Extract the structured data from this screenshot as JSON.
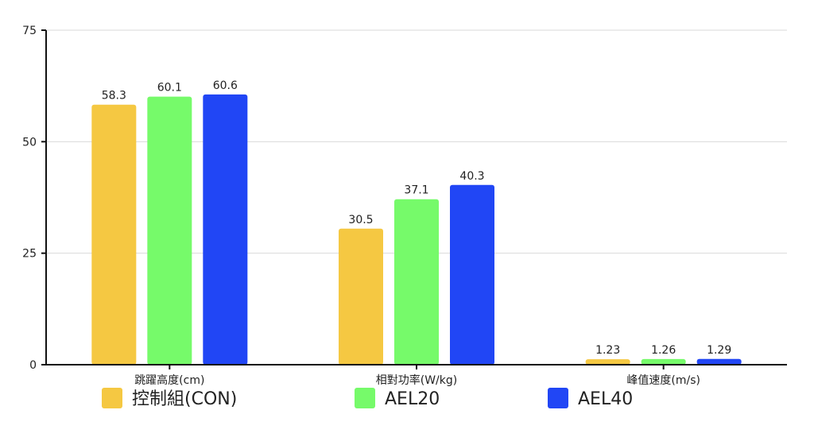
{
  "chart_data": {
    "type": "bar",
    "categories": [
      "跳躍高度(cm)",
      "相對功率(W/kg)",
      "峰值速度(m/s)"
    ],
    "series": [
      {
        "name": "控制組(CON)",
        "values": [
          58.3,
          30.5,
          1.23
        ],
        "labels": [
          "58.3",
          "30.5",
          "1.23"
        ],
        "color": "#f5c842"
      },
      {
        "name": "AEL20",
        "values": [
          60.1,
          37.1,
          1.26
        ],
        "labels": [
          "60.1",
          "37.1",
          "1.26"
        ],
        "color": "#76fa6a"
      },
      {
        "name": "AEL40",
        "values": [
          60.6,
          40.3,
          1.29
        ],
        "labels": [
          "60.6",
          "40.3",
          "1.29"
        ],
        "color": "#2146f5"
      }
    ],
    "ylim": [
      0,
      75
    ],
    "yticks": [
      0,
      25,
      50,
      75
    ],
    "grid": true,
    "legend_position": "bottom"
  }
}
